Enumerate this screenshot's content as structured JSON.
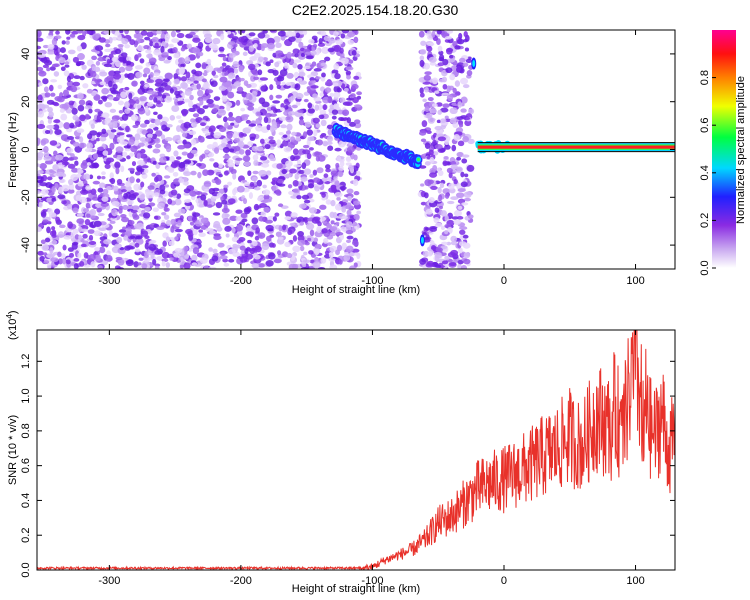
{
  "title": "C2E2.2025.154.18.20.G30",
  "chart_data": [
    {
      "type": "heatmap",
      "xlabel": "Height of straight line (km)",
      "ylabel": "Frequency (Hz)",
      "xlim": [
        -355,
        130
      ],
      "ylim": [
        -50,
        50
      ],
      "x_ticks": [
        -300,
        -200,
        -100,
        0,
        100
      ],
      "y_ticks": [
        -40,
        -20,
        0,
        20,
        40
      ],
      "colorbar": {
        "label": "Normalized spectral amplitude",
        "ticks": [
          "0.0",
          "0.2",
          "0.4",
          "0.6",
          "0.8"
        ],
        "range": [
          0,
          1
        ],
        "colormap": "rainbow: white-purple-blue-cyan-green-yellow-orange-red-magenta"
      },
      "regions": [
        {
          "kind": "noise",
          "x_range": [
            -355,
            -110
          ],
          "amplitude": 0.15
        },
        {
          "kind": "signal-drifting",
          "x_range": [
            -128,
            -65
          ],
          "freq_start": 8,
          "freq_end": -5,
          "amplitude": 0.45
        },
        {
          "kind": "noise",
          "x_range": [
            -63,
            -25
          ],
          "amplitude": 0.15
        },
        {
          "kind": "spike",
          "x": -62,
          "freq": -38
        },
        {
          "kind": "spike",
          "x": -23,
          "freq": 36
        },
        {
          "kind": "signal-carrier",
          "x_range": [
            -20,
            130
          ],
          "freq": 1,
          "amplitude": 1.0
        }
      ]
    },
    {
      "type": "line",
      "xlabel": "Height of straight line (km)",
      "ylabel": "SNR (10 * v/v)",
      "y_multiplier": "(x10",
      "y_multiplier_exp": "4",
      "xlim": [
        -355,
        130
      ],
      "ylim": [
        0,
        1.38
      ],
      "x_ticks": [
        -300,
        -200,
        -100,
        0,
        100
      ],
      "y_ticks": [
        "0.0",
        "0.2",
        "0.4",
        "0.6",
        "0.8",
        "1.0",
        "1.2"
      ],
      "series": [
        {
          "color": "#e8312a",
          "envelope": [
            [
              -355,
              0.0
            ],
            [
              -110,
              0.0
            ],
            [
              -100,
              0.02
            ],
            [
              -90,
              0.06
            ],
            [
              -80,
              0.09
            ],
            [
              -70,
              0.12
            ],
            [
              -60,
              0.18
            ],
            [
              -50,
              0.28
            ],
            [
              -40,
              0.32
            ],
            [
              -30,
              0.4
            ],
            [
              -20,
              0.48
            ],
            [
              -10,
              0.52
            ],
            [
              0,
              0.54
            ],
            [
              10,
              0.58
            ],
            [
              20,
              0.62
            ],
            [
              30,
              0.68
            ],
            [
              40,
              0.72
            ],
            [
              50,
              0.8
            ],
            [
              55,
              0.75
            ],
            [
              60,
              0.74
            ],
            [
              70,
              0.92
            ],
            [
              80,
              0.86
            ],
            [
              85,
              0.95
            ],
            [
              90,
              0.8
            ],
            [
              95,
              1.05
            ],
            [
              100,
              1.2
            ],
            [
              105,
              0.96
            ],
            [
              110,
              0.86
            ],
            [
              115,
              0.8
            ],
            [
              120,
              0.94
            ],
            [
              125,
              0.7
            ],
            [
              130,
              0.8
            ]
          ]
        }
      ]
    }
  ]
}
